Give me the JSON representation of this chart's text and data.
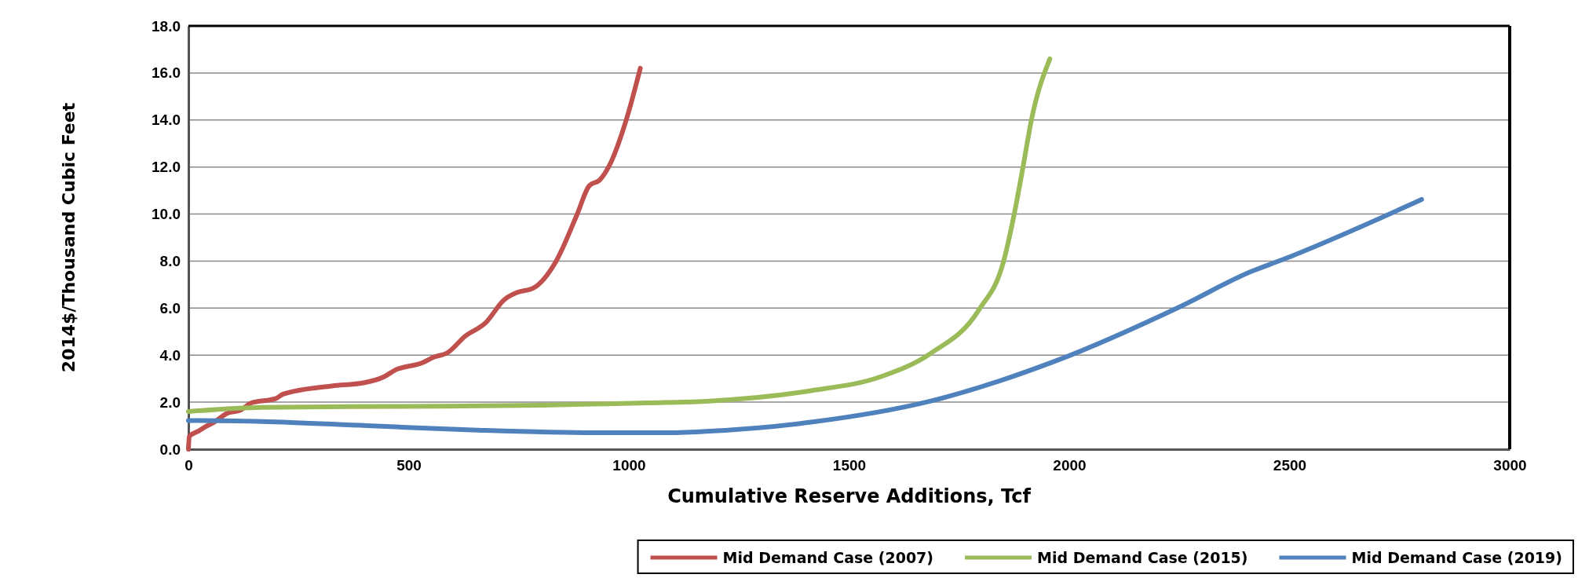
{
  "chart_data": {
    "type": "line",
    "xlabel": "Cumulative Reserve Additions, Tcf",
    "ylabel": "2014$/Thousand Cubic Feet",
    "xlim": [
      0,
      3000
    ],
    "xticks": [
      0,
      500,
      1000,
      1500,
      2000,
      2500,
      3000
    ],
    "ylim": [
      0,
      18
    ],
    "yticks": [
      {
        "value": 0,
        "label": "0.0"
      },
      {
        "value": 2,
        "label": "2.0"
      },
      {
        "value": 4,
        "label": "4.0"
      },
      {
        "value": 6,
        "label": "6.0"
      },
      {
        "value": 8,
        "label": "8.0"
      },
      {
        "value": 10,
        "label": "10.0"
      },
      {
        "value": 12,
        "label": "12.0"
      },
      {
        "value": 14,
        "label": "14.0"
      },
      {
        "value": 16,
        "label": "16.0"
      },
      {
        "value": 18,
        "label": "18.0"
      }
    ],
    "grid": "y",
    "legend": "bottom",
    "marker": "none",
    "line_style": "solid",
    "series": [
      {
        "name": "Mid Demand Case (2007)",
        "color": "#c0504d",
        "x": [
          0,
          2,
          24,
          40,
          56,
          87,
          119,
          143,
          199,
          215,
          326,
          397,
          445,
          469,
          533,
          556,
          588,
          628,
          676,
          716,
          747,
          783,
          835,
          882,
          910,
          934,
          954,
          994,
          1026
        ],
        "values": [
          0,
          0.55,
          0.78,
          0.97,
          1.12,
          1.52,
          1.67,
          1.97,
          2.16,
          2.34,
          2.69,
          2.82,
          3.09,
          3.36,
          3.69,
          3.91,
          4.1,
          4.8,
          5.4,
          6.34,
          6.67,
          6.85,
          8.0,
          9.96,
          11.2,
          11.45,
          12.0,
          14.0,
          16.2
        ]
      },
      {
        "name": "Mid Demand Case (2015)",
        "color": "#9bbb59",
        "x": [
          0,
          167,
          485,
          803,
          1041,
          1175,
          1414,
          1573,
          1684,
          1795,
          1851,
          1875,
          1895,
          1914,
          1956
        ],
        "values": [
          1.6,
          1.78,
          1.82,
          1.87,
          1.97,
          2.04,
          2.49,
          3.09,
          4.06,
          5.93,
          8.0,
          10.0,
          12.0,
          14.0,
          16.6
        ]
      },
      {
        "name": "Mid Demand Case (2019)",
        "color": "#4f81bd",
        "x": [
          0,
          167,
          405,
          644,
          922,
          1081,
          1175,
          1414,
          1684,
          1970,
          2248,
          2415,
          2480,
          2800
        ],
        "values": [
          1.22,
          1.18,
          1.0,
          0.82,
          0.7,
          0.7,
          0.76,
          1.15,
          2.04,
          3.76,
          6.03,
          7.57,
          8.03,
          10.62
        ]
      }
    ]
  }
}
